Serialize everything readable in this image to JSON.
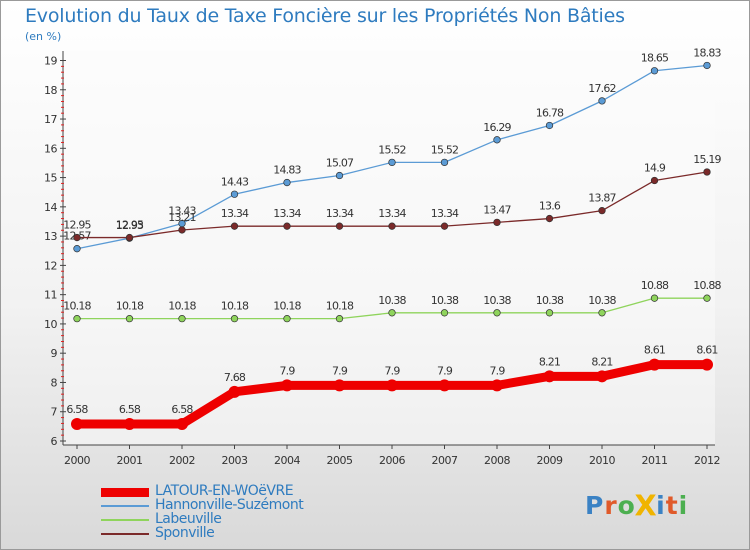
{
  "title": "Evolution du Taux de Taxe Foncière sur les Propriétés Non Bâties",
  "subtitle": "(en %)",
  "logo": {
    "text": "ProXiti",
    "colors": [
      "#3b82c4",
      "#e05a2a",
      "#4caf50",
      "#f0b400",
      "#3b82c4",
      "#e05a2a",
      "#4caf50"
    ]
  },
  "chart_data": {
    "type": "line",
    "x": [
      "2000",
      "2001",
      "2002",
      "2003",
      "2004",
      "2005",
      "2006",
      "2007",
      "2008",
      "2009",
      "2010",
      "2011",
      "2012"
    ],
    "ylim": [
      6,
      19
    ],
    "yticks": [
      "6",
      "7",
      "8",
      "9",
      "10",
      "11",
      "12",
      "13",
      "14",
      "15",
      "16",
      "17",
      "18",
      "19"
    ],
    "grid": false,
    "legend_position": "bottom-left",
    "series": [
      {
        "name": "LATOUR-EN-WOëVRE",
        "color": "#ee0000",
        "values": [
          6.58,
          6.58,
          6.58,
          7.68,
          7.9,
          7.9,
          7.9,
          7.9,
          7.9,
          8.21,
          8.21,
          8.61,
          8.61
        ],
        "labels": [
          "6.58",
          "6.58",
          "6.58",
          "7.68",
          "7.9",
          "7.9",
          "7.9",
          "7.9",
          "7.9",
          "8.21",
          "8.21",
          "8.61",
          "8.61"
        ]
      },
      {
        "name": "Hannonville-Suzémont",
        "color": "#5b9bd5",
        "values": [
          12.57,
          12.93,
          13.43,
          14.43,
          14.83,
          15.07,
          15.52,
          15.52,
          16.29,
          16.78,
          17.62,
          18.65,
          18.83
        ],
        "labels": [
          "12.57",
          "12.93",
          "13.43",
          "14.43",
          "14.83",
          "15.07",
          "15.52",
          "15.52",
          "16.29",
          "16.78",
          "17.62",
          "18.65",
          "18.83"
        ]
      },
      {
        "name": "Labeuville",
        "color": "#8fd45c",
        "values": [
          10.18,
          10.18,
          10.18,
          10.18,
          10.18,
          10.18,
          10.38,
          10.38,
          10.38,
          10.38,
          10.38,
          10.88,
          10.88
        ],
        "labels": [
          "10.18",
          "10.18",
          "10.18",
          "10.18",
          "10.18",
          "10.18",
          "10.38",
          "10.38",
          "10.38",
          "10.38",
          "10.38",
          "10.88",
          "10.88"
        ]
      },
      {
        "name": "Sponville",
        "color": "#7b2a2a",
        "values": [
          12.95,
          12.95,
          13.21,
          13.34,
          13.34,
          13.34,
          13.34,
          13.34,
          13.47,
          13.6,
          13.87,
          14.9,
          15.19
        ],
        "labels": [
          "12.95",
          "12.95",
          "13.21",
          "13.34",
          "13.34",
          "13.34",
          "13.34",
          "13.34",
          "13.47",
          "13.6",
          "13.87",
          "14.9",
          "15.19"
        ]
      }
    ]
  }
}
